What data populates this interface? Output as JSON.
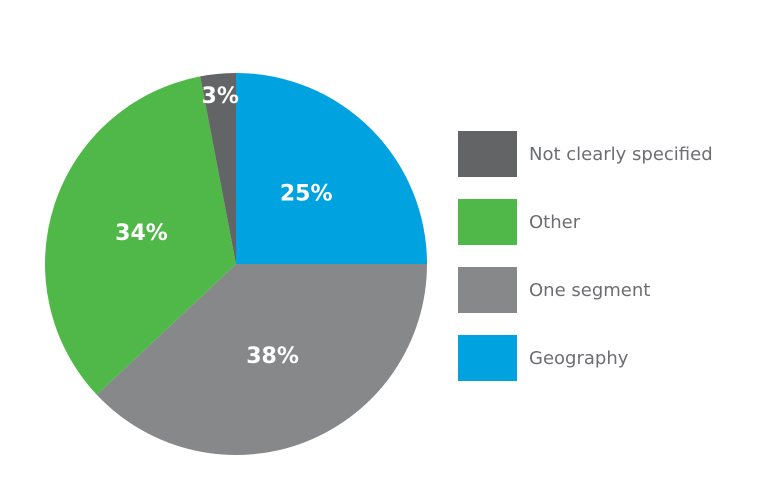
{
  "chart_data": {
    "type": "pie",
    "slices": [
      {
        "label": "Geography",
        "value": 25,
        "display": "25%",
        "color": "#00a3e0"
      },
      {
        "label": "One segment",
        "value": 38,
        "display": "38%",
        "color": "#878889"
      },
      {
        "label": "Other",
        "value": 34,
        "display": "34%",
        "color": "#50b848"
      },
      {
        "label": "Not clearly specified",
        "value": 3,
        "display": "3%",
        "color": "#636466"
      }
    ],
    "legend_order": [
      "Not clearly specified",
      "Other",
      "One segment",
      "Geography"
    ],
    "legend_position": "right"
  }
}
